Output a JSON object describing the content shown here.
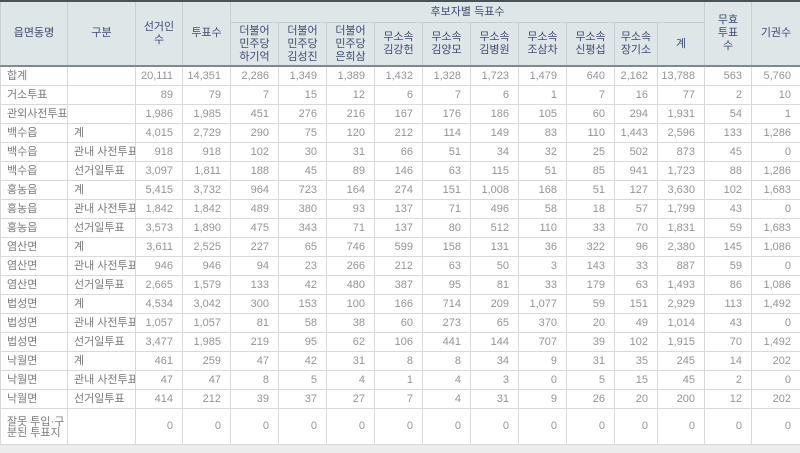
{
  "colors": {
    "header_bg": "#dfe6e8",
    "header_text": "#3e4d73",
    "body_text": "#949494",
    "top_border": "#46545a",
    "header_separator": "#788d90"
  },
  "table": {
    "header": {
      "col_region": "읍면동명",
      "col_category": "구분",
      "col_electorate": "선거인수",
      "col_votes": "투표수",
      "banner": "후보자별 득표수",
      "candidates": [
        {
          "party": "더불어민주당",
          "name": "하기억"
        },
        {
          "party": "더불어민주당",
          "name": "김성진"
        },
        {
          "party": "더불어민주당",
          "name": "은희삼"
        },
        {
          "party": "무소속",
          "name": "김강헌"
        },
        {
          "party": "무소속",
          "name": "김양모"
        },
        {
          "party": "무소속",
          "name": "김병원"
        },
        {
          "party": "무소속",
          "name": "조삼차"
        },
        {
          "party": "무소속",
          "name": "신평섭"
        },
        {
          "party": "무소속",
          "name": "장기소"
        }
      ],
      "col_total": "계",
      "col_invalid": "무효투표수",
      "col_abstain": "기권수"
    },
    "rows": [
      {
        "region": "합계",
        "category": "",
        "electorate": "20,111",
        "votes": "14,351",
        "candidate_votes": [
          "2,286",
          "1,349",
          "1,389",
          "1,432",
          "1,328",
          "1,723",
          "1,479",
          "640",
          "2,162"
        ],
        "total": "13,788",
        "invalid": "563",
        "abstain": "5,760"
      },
      {
        "region": "거소투표",
        "category": "",
        "electorate": "89",
        "votes": "79",
        "candidate_votes": [
          "7",
          "15",
          "12",
          "6",
          "7",
          "6",
          "1",
          "7",
          "16"
        ],
        "total": "77",
        "invalid": "2",
        "abstain": "10"
      },
      {
        "region": "관외사전투표",
        "category": "",
        "electorate": "1,986",
        "votes": "1,985",
        "candidate_votes": [
          "451",
          "276",
          "216",
          "167",
          "176",
          "186",
          "105",
          "60",
          "294"
        ],
        "total": "1,931",
        "invalid": "54",
        "abstain": "1"
      },
      {
        "region": "백수읍",
        "category": "계",
        "electorate": "4,015",
        "votes": "2,729",
        "candidate_votes": [
          "290",
          "75",
          "120",
          "212",
          "114",
          "149",
          "83",
          "110",
          "1,443"
        ],
        "total": "2,596",
        "invalid": "133",
        "abstain": "1,286"
      },
      {
        "region": "백수읍",
        "category": "관내 사전투표",
        "electorate": "918",
        "votes": "918",
        "candidate_votes": [
          "102",
          "30",
          "31",
          "66",
          "51",
          "34",
          "32",
          "25",
          "502"
        ],
        "total": "873",
        "invalid": "45",
        "abstain": "0"
      },
      {
        "region": "백수읍",
        "category": "선거일투표",
        "electorate": "3,097",
        "votes": "1,811",
        "candidate_votes": [
          "188",
          "45",
          "89",
          "146",
          "63",
          "115",
          "51",
          "85",
          "941"
        ],
        "total": "1,723",
        "invalid": "88",
        "abstain": "1,286"
      },
      {
        "region": "홍농읍",
        "category": "계",
        "electorate": "5,415",
        "votes": "3,732",
        "candidate_votes": [
          "964",
          "723",
          "164",
          "274",
          "151",
          "1,008",
          "168",
          "51",
          "127"
        ],
        "total": "3,630",
        "invalid": "102",
        "abstain": "1,683"
      },
      {
        "region": "홍농읍",
        "category": "관내 사전투표",
        "electorate": "1,842",
        "votes": "1,842",
        "candidate_votes": [
          "489",
          "380",
          "93",
          "137",
          "71",
          "496",
          "58",
          "18",
          "57"
        ],
        "total": "1,799",
        "invalid": "43",
        "abstain": "0"
      },
      {
        "region": "홍농읍",
        "category": "선거일투표",
        "electorate": "3,573",
        "votes": "1,890",
        "candidate_votes": [
          "475",
          "343",
          "71",
          "137",
          "80",
          "512",
          "110",
          "33",
          "70"
        ],
        "total": "1,831",
        "invalid": "59",
        "abstain": "1,683"
      },
      {
        "region": "염산면",
        "category": "계",
        "electorate": "3,611",
        "votes": "2,525",
        "candidate_votes": [
          "227",
          "65",
          "746",
          "599",
          "158",
          "131",
          "36",
          "322",
          "96"
        ],
        "total": "2,380",
        "invalid": "145",
        "abstain": "1,086"
      },
      {
        "region": "염산면",
        "category": "관내 사전투표",
        "electorate": "946",
        "votes": "946",
        "candidate_votes": [
          "94",
          "23",
          "266",
          "212",
          "63",
          "50",
          "3",
          "143",
          "33"
        ],
        "total": "887",
        "invalid": "59",
        "abstain": "0"
      },
      {
        "region": "염산면",
        "category": "선거일투표",
        "electorate": "2,665",
        "votes": "1,579",
        "candidate_votes": [
          "133",
          "42",
          "480",
          "387",
          "95",
          "81",
          "33",
          "179",
          "63"
        ],
        "total": "1,493",
        "invalid": "86",
        "abstain": "1,086"
      },
      {
        "region": "법성면",
        "category": "계",
        "electorate": "4,534",
        "votes": "3,042",
        "candidate_votes": [
          "300",
          "153",
          "100",
          "166",
          "714",
          "209",
          "1,077",
          "59",
          "151"
        ],
        "total": "2,929",
        "invalid": "113",
        "abstain": "1,492"
      },
      {
        "region": "법성면",
        "category": "관내 사전투표",
        "electorate": "1,057",
        "votes": "1,057",
        "candidate_votes": [
          "81",
          "58",
          "38",
          "60",
          "273",
          "65",
          "370",
          "20",
          "49"
        ],
        "total": "1,014",
        "invalid": "43",
        "abstain": "0"
      },
      {
        "region": "법성면",
        "category": "선거일투표",
        "electorate": "3,477",
        "votes": "1,985",
        "candidate_votes": [
          "219",
          "95",
          "62",
          "106",
          "441",
          "144",
          "707",
          "39",
          "102"
        ],
        "total": "1,915",
        "invalid": "70",
        "abstain": "1,492"
      },
      {
        "region": "낙월면",
        "category": "계",
        "electorate": "461",
        "votes": "259",
        "candidate_votes": [
          "47",
          "42",
          "31",
          "8",
          "8",
          "34",
          "9",
          "31",
          "35"
        ],
        "total": "245",
        "invalid": "14",
        "abstain": "202"
      },
      {
        "region": "낙월면",
        "category": "관내 사전투표",
        "electorate": "47",
        "votes": "47",
        "candidate_votes": [
          "8",
          "5",
          "4",
          "1",
          "4",
          "3",
          "0",
          "5",
          "15"
        ],
        "total": "45",
        "invalid": "2",
        "abstain": "0"
      },
      {
        "region": "낙월면",
        "category": "선거일투표",
        "electorate": "414",
        "votes": "212",
        "candidate_votes": [
          "39",
          "37",
          "27",
          "7",
          "4",
          "31",
          "9",
          "26",
          "20"
        ],
        "total": "200",
        "invalid": "12",
        "abstain": "202"
      },
      {
        "region": "잘못 투입·구분된 투표지",
        "category": "",
        "electorate": "0",
        "votes": "0",
        "candidate_votes": [
          "0",
          "0",
          "0",
          "0",
          "0",
          "0",
          "0",
          "0",
          "0"
        ],
        "total": "0",
        "invalid": "0",
        "abstain": "0"
      }
    ]
  }
}
